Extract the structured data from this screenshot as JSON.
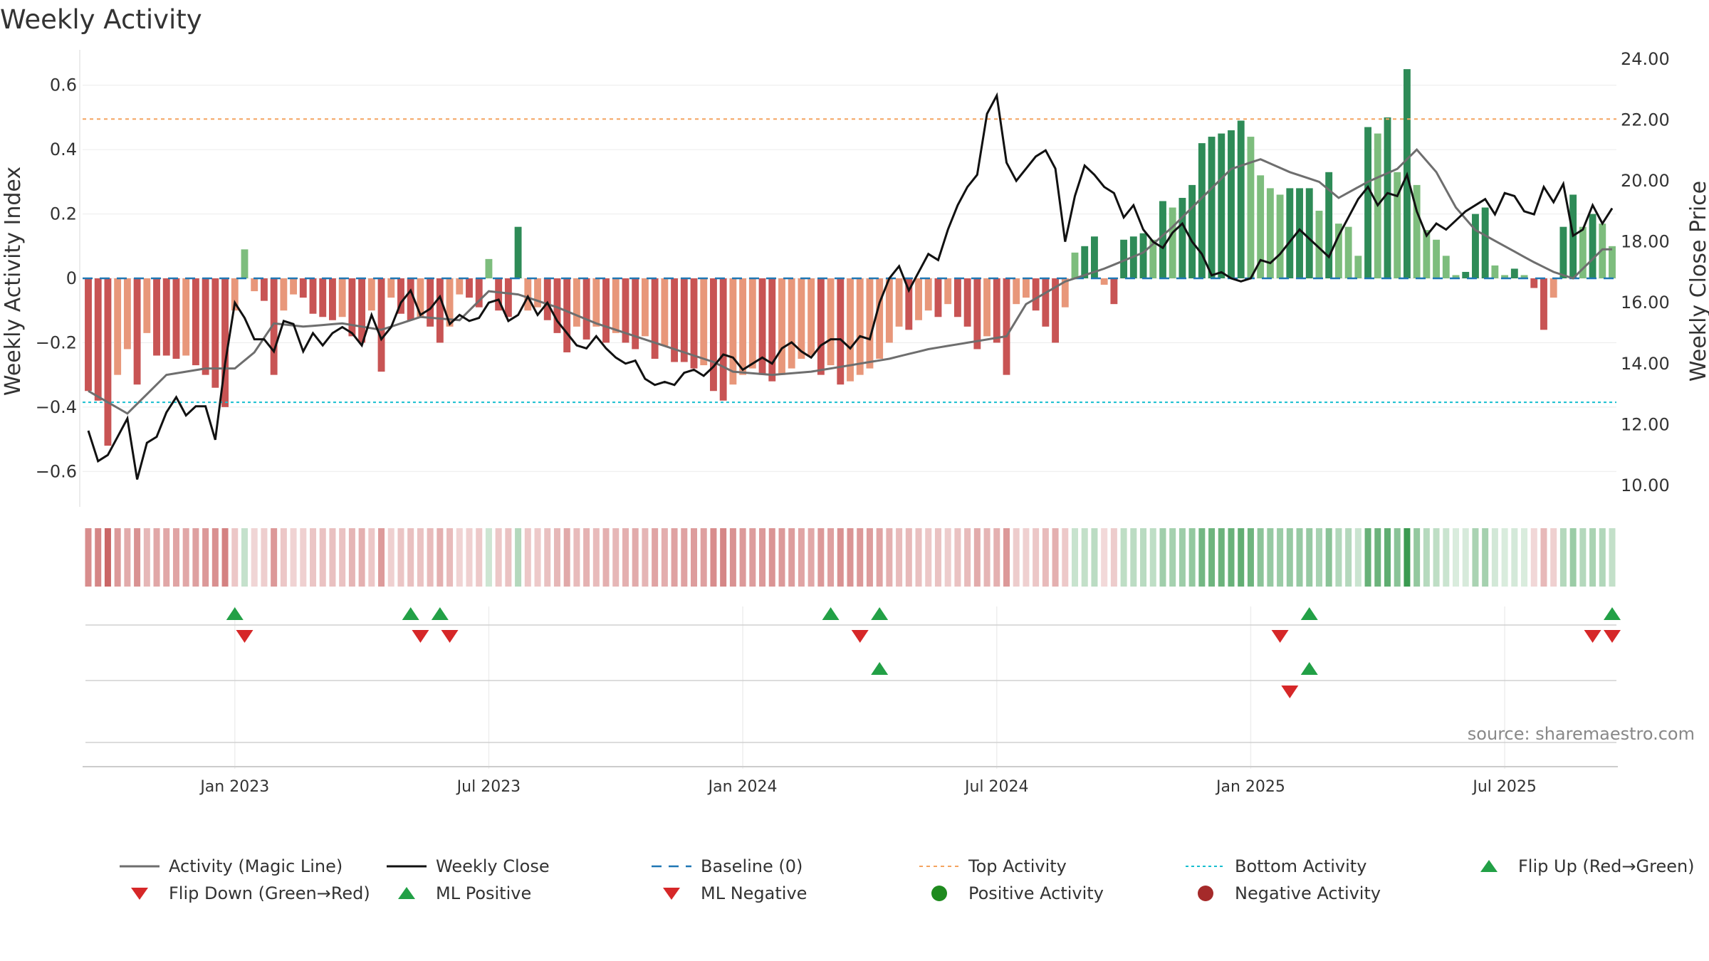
{
  "chart_data": {
    "type": "bar+line",
    "title": "Weekly Activity",
    "left_axis": {
      "label": "Weekly Activity Index",
      "range": [
        -0.71,
        0.71
      ],
      "ticks": [
        -0.6,
        -0.4,
        -0.2,
        0,
        0.2,
        0.4,
        0.6
      ],
      "tick_labels": [
        "−0.6",
        "−0.4",
        "−0.2",
        "0",
        "0.2",
        "0.4",
        "0.6"
      ]
    },
    "right_axis": {
      "label": "Weekly Close Price",
      "range": [
        9.3,
        24.3
      ],
      "ticks": [
        10,
        12,
        14,
        16,
        18,
        20,
        22,
        24
      ],
      "tick_labels": [
        "10.00",
        "12.00",
        "14.00",
        "16.00",
        "18.00",
        "20.00",
        "22.00",
        "24.00"
      ]
    },
    "x_axis": {
      "ticks": [
        "Jan 2023",
        "Jul 2023",
        "Jan 2024",
        "Jul 2024",
        "Jan 2025",
        "Jul 2025"
      ],
      "tick_weeks": [
        15,
        41,
        67,
        93,
        119,
        145
      ]
    },
    "num_weeks": 157,
    "top_activity": 0.495,
    "bottom_activity": -0.385,
    "baseline": 0,
    "activity_knots": [
      [
        0,
        -0.35
      ],
      [
        1,
        -0.38
      ],
      [
        2,
        -0.52
      ],
      [
        3,
        -0.3
      ],
      [
        4,
        -0.22
      ],
      [
        5,
        -0.33
      ],
      [
        6,
        -0.17
      ],
      [
        7,
        -0.24
      ],
      [
        8,
        -0.24
      ],
      [
        9,
        -0.25
      ],
      [
        10,
        -0.24
      ],
      [
        11,
        -0.27
      ],
      [
        12,
        -0.3
      ],
      [
        13,
        -0.34
      ],
      [
        14,
        -0.4
      ],
      [
        15,
        -0.1
      ],
      [
        16,
        0.09
      ],
      [
        17,
        -0.04
      ],
      [
        18,
        -0.07
      ],
      [
        19,
        -0.3
      ],
      [
        20,
        -0.1
      ],
      [
        21,
        -0.05
      ],
      [
        22,
        -0.06
      ],
      [
        23,
        -0.11
      ],
      [
        24,
        -0.12
      ],
      [
        25,
        -0.13
      ],
      [
        26,
        -0.12
      ],
      [
        27,
        -0.18
      ],
      [
        28,
        -0.2
      ],
      [
        29,
        -0.1
      ],
      [
        30,
        -0.29
      ],
      [
        31,
        -0.06
      ],
      [
        32,
        -0.11
      ],
      [
        33,
        -0.13
      ],
      [
        34,
        -0.12
      ],
      [
        35,
        -0.15
      ],
      [
        36,
        -0.2
      ],
      [
        37,
        -0.15
      ],
      [
        38,
        -0.05
      ],
      [
        39,
        -0.06
      ],
      [
        40,
        -0.09
      ],
      [
        41,
        0.06
      ],
      [
        42,
        -0.1
      ],
      [
        43,
        -0.12
      ],
      [
        44,
        0.16
      ],
      [
        45,
        -0.1
      ],
      [
        46,
        -0.09
      ],
      [
        47,
        -0.13
      ],
      [
        48,
        -0.17
      ],
      [
        49,
        -0.23
      ],
      [
        50,
        -0.15
      ],
      [
        51,
        -0.19
      ],
      [
        52,
        -0.15
      ],
      [
        53,
        -0.2
      ],
      [
        54,
        -0.17
      ],
      [
        55,
        -0.2
      ],
      [
        56,
        -0.22
      ],
      [
        57,
        -0.18
      ],
      [
        58,
        -0.25
      ],
      [
        59,
        -0.21
      ],
      [
        60,
        -0.26
      ],
      [
        61,
        -0.26
      ],
      [
        62,
        -0.28
      ],
      [
        63,
        -0.27
      ],
      [
        64,
        -0.35
      ],
      [
        65,
        -0.38
      ],
      [
        66,
        -0.33
      ],
      [
        67,
        -0.3
      ],
      [
        68,
        -0.28
      ],
      [
        69,
        -0.3
      ],
      [
        70,
        -0.32
      ],
      [
        71,
        -0.3
      ],
      [
        72,
        -0.28
      ],
      [
        73,
        -0.25
      ],
      [
        74,
        -0.24
      ],
      [
        75,
        -0.3
      ],
      [
        76,
        -0.27
      ],
      [
        77,
        -0.33
      ],
      [
        78,
        -0.32
      ],
      [
        79,
        -0.3
      ],
      [
        80,
        -0.28
      ],
      [
        81,
        -0.25
      ],
      [
        82,
        -0.2
      ],
      [
        83,
        -0.15
      ],
      [
        84,
        -0.16
      ],
      [
        85,
        -0.13
      ],
      [
        86,
        -0.1
      ],
      [
        87,
        -0.12
      ],
      [
        88,
        -0.08
      ],
      [
        89,
        -0.12
      ],
      [
        90,
        -0.15
      ],
      [
        91,
        -0.22
      ],
      [
        92,
        -0.18
      ],
      [
        93,
        -0.2
      ],
      [
        94,
        -0.3
      ],
      [
        95,
        -0.08
      ],
      [
        96,
        -0.06
      ],
      [
        97,
        -0.1
      ],
      [
        98,
        -0.15
      ],
      [
        99,
        -0.2
      ],
      [
        100,
        -0.09
      ],
      [
        101,
        0.08
      ],
      [
        102,
        0.1
      ],
      [
        103,
        0.13
      ],
      [
        104,
        -0.02
      ],
      [
        105,
        -0.08
      ],
      [
        106,
        0.12
      ],
      [
        107,
        0.13
      ],
      [
        108,
        0.14
      ],
      [
        109,
        0.12
      ],
      [
        110,
        0.24
      ],
      [
        111,
        0.22
      ],
      [
        112,
        0.25
      ],
      [
        113,
        0.29
      ],
      [
        114,
        0.42
      ],
      [
        115,
        0.44
      ],
      [
        116,
        0.45
      ],
      [
        117,
        0.46
      ],
      [
        118,
        0.49
      ],
      [
        119,
        0.44
      ],
      [
        120,
        0.32
      ],
      [
        121,
        0.28
      ],
      [
        122,
        0.26
      ],
      [
        123,
        0.28
      ],
      [
        124,
        0.28
      ],
      [
        125,
        0.28
      ],
      [
        126,
        0.21
      ],
      [
        127,
        0.33
      ],
      [
        128,
        0.17
      ],
      [
        129,
        0.16
      ],
      [
        130,
        0.07
      ],
      [
        131,
        0.47
      ],
      [
        132,
        0.45
      ],
      [
        133,
        0.5
      ],
      [
        134,
        0.33
      ],
      [
        135,
        0.65
      ],
      [
        136,
        0.29
      ],
      [
        137,
        0.15
      ],
      [
        138,
        0.12
      ],
      [
        139,
        0.07
      ],
      [
        140,
        0.01
      ],
      [
        141,
        0.02
      ],
      [
        142,
        0.2
      ],
      [
        143,
        0.22
      ],
      [
        144,
        0.04
      ],
      [
        145,
        0.01
      ],
      [
        146,
        0.03
      ],
      [
        147,
        0.01
      ],
      [
        148,
        -0.03
      ],
      [
        149,
        -0.16
      ],
      [
        150,
        -0.06
      ],
      [
        151,
        0.16
      ],
      [
        152,
        0.26
      ],
      [
        153,
        0.16
      ],
      [
        154,
        0.2
      ],
      [
        155,
        0.17
      ],
      [
        156,
        0.1
      ]
    ],
    "magic_line_knots": [
      [
        0,
        -0.35
      ],
      [
        4,
        -0.42
      ],
      [
        8,
        -0.3
      ],
      [
        12,
        -0.28
      ],
      [
        15,
        -0.28
      ],
      [
        17,
        -0.23
      ],
      [
        19,
        -0.14
      ],
      [
        22,
        -0.15
      ],
      [
        26,
        -0.14
      ],
      [
        30,
        -0.16
      ],
      [
        34,
        -0.12
      ],
      [
        38,
        -0.13
      ],
      [
        41,
        -0.04
      ],
      [
        44,
        -0.05
      ],
      [
        48,
        -0.09
      ],
      [
        52,
        -0.14
      ],
      [
        56,
        -0.18
      ],
      [
        60,
        -0.22
      ],
      [
        64,
        -0.26
      ],
      [
        66,
        -0.29
      ],
      [
        70,
        -0.3
      ],
      [
        74,
        -0.29
      ],
      [
        78,
        -0.27
      ],
      [
        82,
        -0.25
      ],
      [
        86,
        -0.22
      ],
      [
        90,
        -0.2
      ],
      [
        94,
        -0.18
      ],
      [
        96,
        -0.08
      ],
      [
        100,
        -0.01
      ],
      [
        104,
        0.03
      ],
      [
        108,
        0.08
      ],
      [
        111,
        0.16
      ],
      [
        114,
        0.25
      ],
      [
        117,
        0.34
      ],
      [
        120,
        0.37
      ],
      [
        123,
        0.33
      ],
      [
        126,
        0.3
      ],
      [
        128,
        0.25
      ],
      [
        131,
        0.3
      ],
      [
        134,
        0.34
      ],
      [
        136,
        0.4
      ],
      [
        138,
        0.33
      ],
      [
        140,
        0.22
      ],
      [
        142,
        0.15
      ],
      [
        145,
        0.1
      ],
      [
        148,
        0.05
      ],
      [
        150,
        0.02
      ],
      [
        152,
        0.0
      ],
      [
        155,
        0.09
      ]
    ],
    "close_knots": [
      [
        0,
        11.8
      ],
      [
        1,
        10.8
      ],
      [
        2,
        11.0
      ],
      [
        3,
        11.6
      ],
      [
        4,
        12.2
      ],
      [
        5,
        10.2
      ],
      [
        6,
        11.4
      ],
      [
        7,
        11.6
      ],
      [
        8,
        12.4
      ],
      [
        9,
        12.9
      ],
      [
        10,
        12.3
      ],
      [
        11,
        12.6
      ],
      [
        12,
        12.6
      ],
      [
        13,
        11.5
      ],
      [
        14,
        14.0
      ],
      [
        15,
        16.0
      ],
      [
        16,
        15.5
      ],
      [
        17,
        14.8
      ],
      [
        18,
        14.8
      ],
      [
        19,
        14.4
      ],
      [
        20,
        15.4
      ],
      [
        21,
        15.3
      ],
      [
        22,
        14.4
      ],
      [
        23,
        15.0
      ],
      [
        24,
        14.6
      ],
      [
        25,
        15.0
      ],
      [
        26,
        15.2
      ],
      [
        27,
        15.0
      ],
      [
        28,
        14.6
      ],
      [
        29,
        15.6
      ],
      [
        30,
        14.8
      ],
      [
        31,
        15.2
      ],
      [
        32,
        16.0
      ],
      [
        33,
        16.4
      ],
      [
        34,
        15.6
      ],
      [
        35,
        15.8
      ],
      [
        36,
        16.2
      ],
      [
        37,
        15.3
      ],
      [
        38,
        15.6
      ],
      [
        39,
        15.4
      ],
      [
        40,
        15.5
      ],
      [
        41,
        16.0
      ],
      [
        42,
        16.1
      ],
      [
        43,
        15.4
      ],
      [
        44,
        15.6
      ],
      [
        45,
        16.2
      ],
      [
        46,
        15.6
      ],
      [
        47,
        16.0
      ],
      [
        48,
        15.4
      ],
      [
        49,
        15.0
      ],
      [
        50,
        14.6
      ],
      [
        51,
        14.5
      ],
      [
        52,
        14.9
      ],
      [
        53,
        14.5
      ],
      [
        54,
        14.2
      ],
      [
        55,
        14.0
      ],
      [
        56,
        14.1
      ],
      [
        57,
        13.5
      ],
      [
        58,
        13.3
      ],
      [
        59,
        13.4
      ],
      [
        60,
        13.3
      ],
      [
        61,
        13.7
      ],
      [
        62,
        13.8
      ],
      [
        63,
        13.6
      ],
      [
        64,
        13.9
      ],
      [
        65,
        14.3
      ],
      [
        66,
        14.2
      ],
      [
        67,
        13.8
      ],
      [
        68,
        14.0
      ],
      [
        69,
        14.2
      ],
      [
        70,
        14.0
      ],
      [
        71,
        14.5
      ],
      [
        72,
        14.7
      ],
      [
        73,
        14.4
      ],
      [
        74,
        14.2
      ],
      [
        75,
        14.6
      ],
      [
        76,
        14.8
      ],
      [
        77,
        14.8
      ],
      [
        78,
        14.5
      ],
      [
        79,
        14.9
      ],
      [
        80,
        14.8
      ],
      [
        81,
        16.0
      ],
      [
        82,
        16.8
      ],
      [
        83,
        17.2
      ],
      [
        84,
        16.4
      ],
      [
        85,
        17.0
      ],
      [
        86,
        17.6
      ],
      [
        87,
        17.4
      ],
      [
        88,
        18.4
      ],
      [
        89,
        19.2
      ],
      [
        90,
        19.8
      ],
      [
        91,
        20.2
      ],
      [
        92,
        22.2
      ],
      [
        93,
        22.8
      ],
      [
        94,
        20.6
      ],
      [
        95,
        20.0
      ],
      [
        96,
        20.4
      ],
      [
        97,
        20.8
      ],
      [
        98,
        21.0
      ],
      [
        99,
        20.4
      ],
      [
        100,
        18.0
      ],
      [
        101,
        19.5
      ],
      [
        102,
        20.5
      ],
      [
        103,
        20.2
      ],
      [
        104,
        19.8
      ],
      [
        105,
        19.6
      ],
      [
        106,
        18.8
      ],
      [
        107,
        19.2
      ],
      [
        108,
        18.4
      ],
      [
        109,
        18.0
      ],
      [
        110,
        17.8
      ],
      [
        111,
        18.3
      ],
      [
        112,
        18.6
      ],
      [
        113,
        18.0
      ],
      [
        114,
        17.6
      ],
      [
        115,
        16.9
      ],
      [
        116,
        17.0
      ],
      [
        117,
        16.8
      ],
      [
        118,
        16.7
      ],
      [
        119,
        16.8
      ],
      [
        120,
        17.4
      ],
      [
        121,
        17.3
      ],
      [
        122,
        17.6
      ],
      [
        123,
        18.0
      ],
      [
        124,
        18.4
      ],
      [
        125,
        18.1
      ],
      [
        126,
        17.8
      ],
      [
        127,
        17.5
      ],
      [
        128,
        18.2
      ],
      [
        129,
        18.8
      ],
      [
        130,
        19.4
      ],
      [
        131,
        19.8
      ],
      [
        132,
        19.2
      ],
      [
        133,
        19.6
      ],
      [
        134,
        19.5
      ],
      [
        135,
        20.2
      ],
      [
        136,
        19.0
      ],
      [
        137,
        18.2
      ],
      [
        138,
        18.6
      ],
      [
        139,
        18.4
      ],
      [
        140,
        18.7
      ],
      [
        141,
        19.0
      ],
      [
        142,
        19.2
      ],
      [
        143,
        19.4
      ],
      [
        144,
        18.9
      ],
      [
        145,
        19.6
      ],
      [
        146,
        19.5
      ],
      [
        147,
        19.0
      ],
      [
        148,
        18.9
      ],
      [
        149,
        19.8
      ],
      [
        150,
        19.3
      ],
      [
        151,
        19.9
      ],
      [
        152,
        18.2
      ],
      [
        153,
        18.4
      ],
      [
        154,
        19.2
      ],
      [
        155,
        18.6
      ],
      [
        156,
        19.1
      ]
    ],
    "flip_up_weeks": [
      15,
      33,
      36,
      76,
      81,
      125,
      156
    ],
    "flip_down_weeks": [
      16,
      34,
      37,
      79,
      122,
      154,
      156
    ],
    "ml_positive_weeks": [
      81,
      125
    ],
    "ml_negative_weeks": [
      123
    ],
    "colors": {
      "pos_strong": "#2e8b57",
      "pos_weak": "#7dbd7d",
      "neg_strong": "#c85454",
      "neg_weak": "#e8977a",
      "magic_line": "#6e6e6e",
      "close": "#111111",
      "baseline": "#1f77b4",
      "top": "#f4a460",
      "bottom": "#17becf",
      "up_marker": "#22a046",
      "down_marker": "#d62728",
      "pos_dot": "#1e8a1e",
      "neg_dot": "#a52a2a"
    },
    "source_note": "source: sharemaestro.com",
    "legend": [
      {
        "key": "magic",
        "label": "Activity (Magic Line)"
      },
      {
        "key": "close",
        "label": "Weekly Close"
      },
      {
        "key": "baseline",
        "label": "Baseline (0)"
      },
      {
        "key": "top",
        "label": "Top Activity"
      },
      {
        "key": "bottom",
        "label": "Bottom Activity"
      },
      {
        "key": "flipup",
        "label": "Flip Up (Red→Green)"
      },
      {
        "key": "flipdown",
        "label": "Flip Down (Green→Red)"
      },
      {
        "key": "mlpos",
        "label": "ML Positive"
      },
      {
        "key": "mlneg",
        "label": "ML Negative"
      },
      {
        "key": "posdot",
        "label": "Positive Activity"
      },
      {
        "key": "negdot",
        "label": "Negative Activity"
      }
    ],
    "legend_placement": "bottom"
  }
}
